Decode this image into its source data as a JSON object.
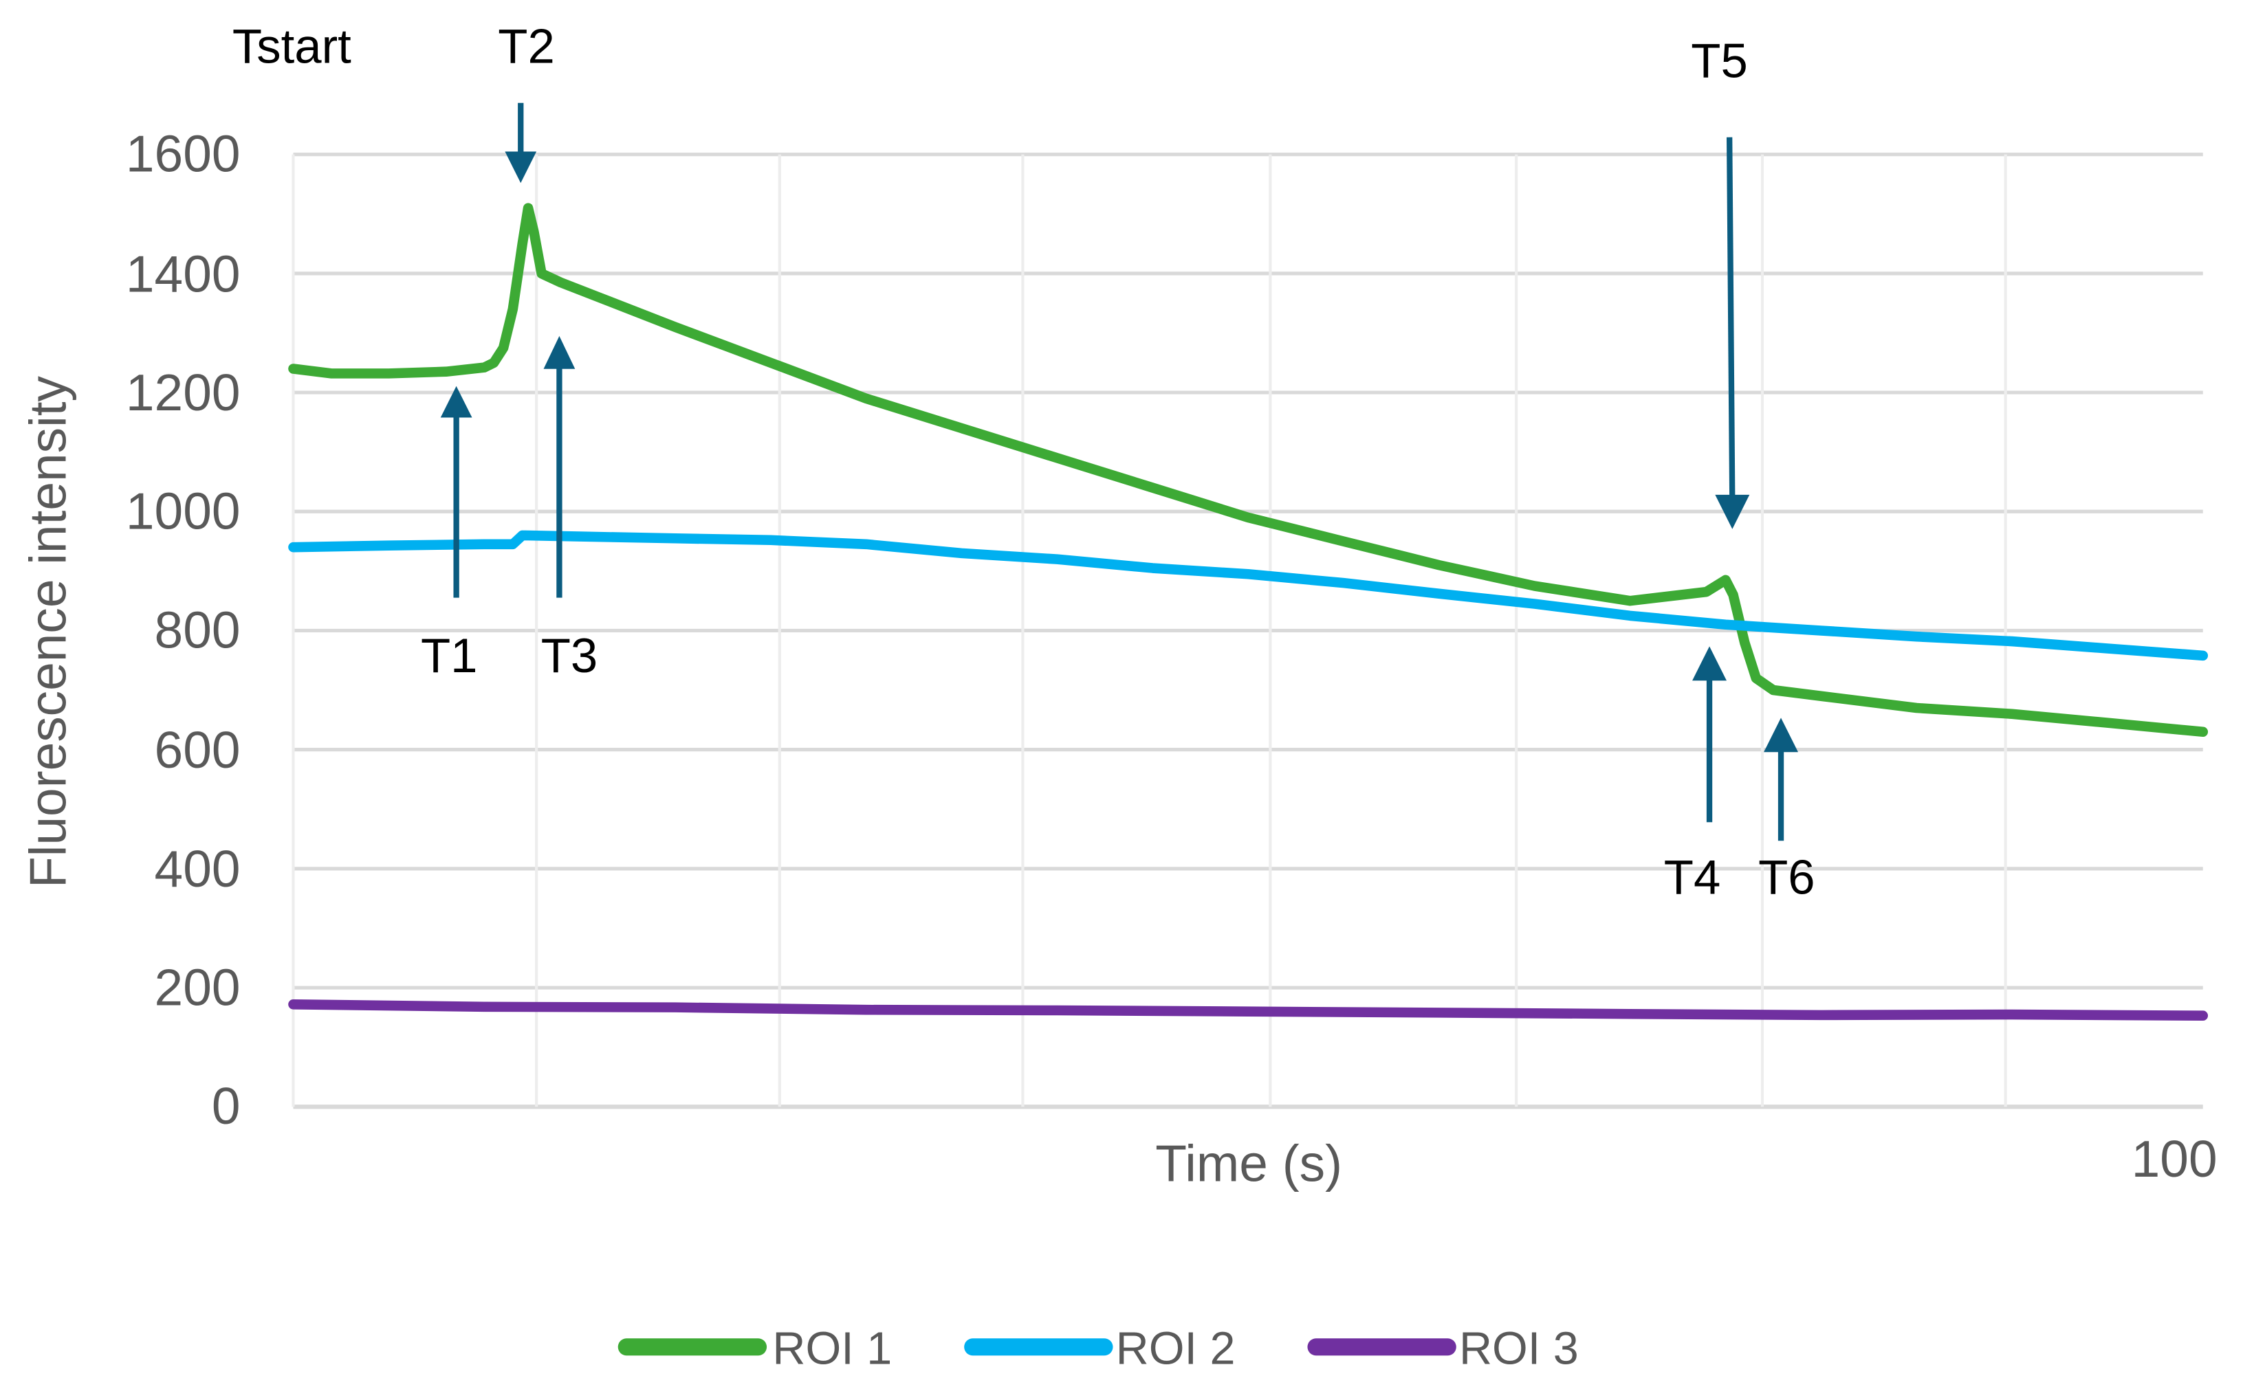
{
  "chart_data": {
    "type": "line",
    "title": "",
    "xlabel": "Time (s)",
    "ylabel": "Fluorescence intensity",
    "xlim": [
      0,
      100
    ],
    "ylim": [
      0,
      1600
    ],
    "x_tick_labels": [
      "100"
    ],
    "y_ticks": [
      0,
      200,
      400,
      600,
      800,
      1000,
      1200,
      1400,
      1600
    ],
    "grid": true,
    "legend_position": "bottom",
    "series": [
      {
        "name": "ROI 1",
        "color": "#3DAA35",
        "x": [
          0,
          2,
          5,
          8,
          10,
          10.5,
          11,
          11.5,
          12,
          12.3,
          12.6,
          13,
          14,
          16,
          20,
          25,
          30,
          35,
          40,
          45,
          50,
          55,
          60,
          65,
          70,
          74,
          75,
          75.4,
          76,
          76.6,
          77.5,
          80,
          85,
          90,
          95,
          100
        ],
        "values": [
          1240,
          1232,
          1232,
          1235,
          1242,
          1250,
          1275,
          1340,
          1450,
          1510,
          1470,
          1400,
          1385,
          1360,
          1310,
          1250,
          1190,
          1140,
          1090,
          1040,
          990,
          950,
          910,
          875,
          850,
          865,
          885,
          860,
          780,
          720,
          700,
          690,
          670,
          660,
          645,
          630
        ]
      },
      {
        "name": "ROI 2",
        "color": "#00B0F0",
        "x": [
          0,
          5,
          10,
          11.5,
          12,
          15,
          20,
          25,
          30,
          35,
          40,
          45,
          50,
          55,
          60,
          65,
          70,
          75,
          80,
          85,
          90,
          95,
          100
        ],
        "values": [
          940,
          943,
          945,
          945,
          960,
          958,
          955,
          952,
          945,
          930,
          920,
          905,
          895,
          880,
          862,
          845,
          825,
          810,
          800,
          790,
          782,
          770,
          758
        ]
      },
      {
        "name": "ROI 3",
        "color": "#7030A0",
        "x": [
          0,
          10,
          20,
          30,
          40,
          50,
          60,
          70,
          80,
          90,
          100
        ],
        "values": [
          172,
          168,
          167,
          163,
          162,
          160,
          158,
          156,
          154,
          155,
          153
        ]
      }
    ],
    "annotations": [
      {
        "label": "Tstart",
        "x": 0,
        "arrow": "none"
      },
      {
        "label": "T1",
        "x": 8.5,
        "arrow": "up",
        "target": "ROI 1 onset"
      },
      {
        "label": "T2",
        "x": 12.1,
        "arrow": "down",
        "target": "ROI 1 peak"
      },
      {
        "label": "T3",
        "x": 14,
        "arrow": "up",
        "target": "ROI 1 decay"
      },
      {
        "label": "T4",
        "x": 74.2,
        "arrow": "up",
        "target": "ROI 2 at crossing"
      },
      {
        "label": "T5",
        "x": 75.6,
        "arrow": "down",
        "target": "ROI 1 bump"
      },
      {
        "label": "T6",
        "x": 78.8,
        "arrow": "up",
        "target": "ROI 1 after drop"
      }
    ]
  },
  "axes": {
    "x_title": "Time (s)",
    "y_title": "Fluorescence intensity",
    "x_end_label": "100",
    "y_labels": [
      "0",
      "200",
      "400",
      "600",
      "800",
      "1000",
      "1200",
      "1400",
      "1600"
    ]
  },
  "annotations": {
    "tstart": "Tstart",
    "t1": "T1",
    "t2": "T2",
    "t3": "T3",
    "t4": "T4",
    "t5": "T5",
    "t6": "T6"
  },
  "legend": [
    {
      "label": "ROI 1",
      "color": "#3DAA35"
    },
    {
      "label": "ROI 2",
      "color": "#00B0F0"
    },
    {
      "label": "ROI 3",
      "color": "#7030A0"
    }
  ],
  "colors": {
    "arrow": "#0B5C80",
    "grid": "#D9D9D9",
    "tick_text": "#595959"
  }
}
